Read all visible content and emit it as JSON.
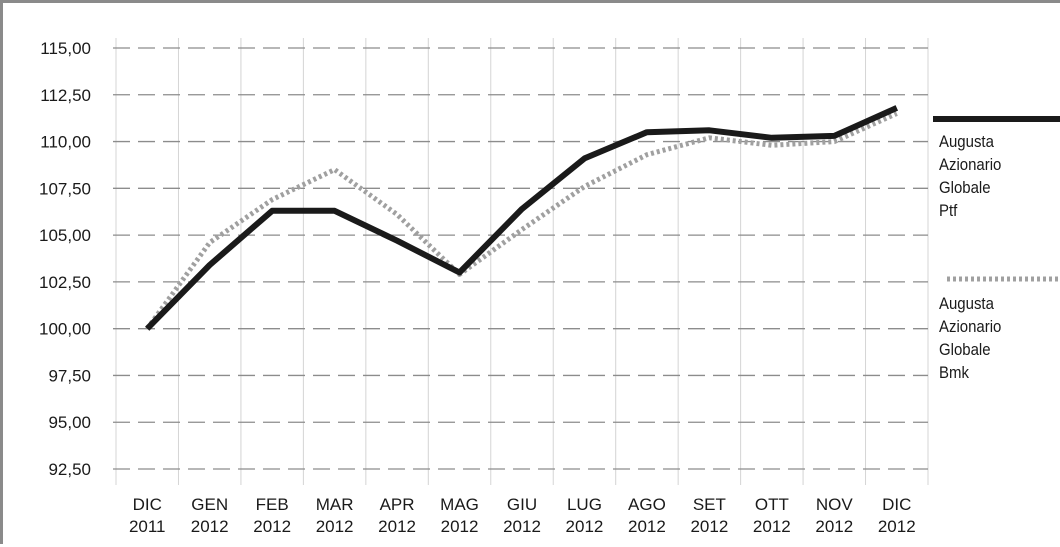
{
  "chart_data": {
    "type": "line",
    "categories": [
      [
        "DIC",
        "2011"
      ],
      [
        "GEN",
        "2012"
      ],
      [
        "FEB",
        "2012"
      ],
      [
        "MAR",
        "2012"
      ],
      [
        "APR",
        "2012"
      ],
      [
        "MAG",
        "2012"
      ],
      [
        "GIU",
        "2012"
      ],
      [
        "LUG",
        "2012"
      ],
      [
        "AGO",
        "2012"
      ],
      [
        "SET",
        "2012"
      ],
      [
        "OTT",
        "2012"
      ],
      [
        "NOV",
        "2012"
      ],
      [
        "DIC",
        "2012"
      ]
    ],
    "y_ticks": [
      "115,00",
      "112,50",
      "110,00",
      "107,50",
      "105,00",
      "102,50",
      "100,00",
      "97,50",
      "95,00",
      "92,50"
    ],
    "y_tick_values": [
      115,
      112.5,
      110,
      107.5,
      105,
      102.5,
      100,
      97.5,
      95,
      92.5
    ],
    "ylim": [
      92.5,
      115
    ],
    "grid": true,
    "legend_position": "right",
    "series": [
      {
        "name": "Augusta\nAzionario\nGlobale\nPtf",
        "style": "solid",
        "color": "#1a1a1a",
        "values": [
          100.0,
          103.4,
          106.3,
          106.3,
          104.7,
          103.0,
          106.4,
          109.1,
          110.5,
          110.6,
          110.2,
          110.3,
          111.8
        ]
      },
      {
        "name": "Augusta\nAzionario\nGlobale\nBmk",
        "style": "dotted",
        "color": "#a0a0a0",
        "values": [
          100.0,
          104.6,
          106.9,
          108.5,
          106.1,
          102.9,
          105.3,
          107.6,
          109.3,
          110.2,
          109.8,
          110.0,
          111.5
        ]
      }
    ]
  }
}
